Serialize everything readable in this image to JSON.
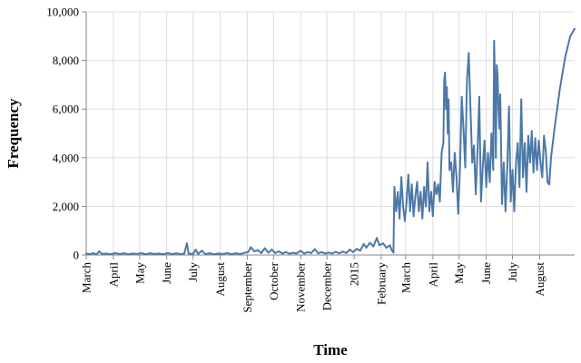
{
  "chart_data": {
    "type": "line",
    "title": "",
    "xlabel": "Time",
    "ylabel": "Frequency",
    "ylim": [
      0,
      10000
    ],
    "y_ticks": [
      {
        "value": 0,
        "label": "0"
      },
      {
        "value": 2000,
        "label": "2,000"
      },
      {
        "value": 4000,
        "label": "4,000"
      },
      {
        "value": 6000,
        "label": "6,000"
      },
      {
        "value": 8000,
        "label": "8,000"
      },
      {
        "value": 10000,
        "label": "10,000"
      }
    ],
    "x_domain": [
      "2014-03-01",
      "2015-09-10"
    ],
    "x_ticks": [
      {
        "date": "2014-03-01",
        "label": "March"
      },
      {
        "date": "2014-04-01",
        "label": "April"
      },
      {
        "date": "2014-05-01",
        "label": "May"
      },
      {
        "date": "2014-06-01",
        "label": "June"
      },
      {
        "date": "2014-07-01",
        "label": "July"
      },
      {
        "date": "2014-08-01",
        "label": "August"
      },
      {
        "date": "2014-09-01",
        "label": "September"
      },
      {
        "date": "2014-10-01",
        "label": "October"
      },
      {
        "date": "2014-11-01",
        "label": "November"
      },
      {
        "date": "2014-12-01",
        "label": "December"
      },
      {
        "date": "2015-01-01",
        "label": "2015"
      },
      {
        "date": "2015-02-01",
        "label": "February"
      },
      {
        "date": "2015-03-01",
        "label": "March"
      },
      {
        "date": "2015-04-01",
        "label": "April"
      },
      {
        "date": "2015-05-01",
        "label": "May"
      },
      {
        "date": "2015-06-01",
        "label": "June"
      },
      {
        "date": "2015-07-01",
        "label": "July"
      },
      {
        "date": "2015-08-01",
        "label": "August"
      }
    ],
    "series": [
      {
        "name": "Frequency",
        "color": "#4c78a8",
        "points": [
          [
            "2014-03-01",
            60
          ],
          [
            "2014-03-05",
            40
          ],
          [
            "2014-03-09",
            70
          ],
          [
            "2014-03-13",
            30
          ],
          [
            "2014-03-16",
            150
          ],
          [
            "2014-03-19",
            40
          ],
          [
            "2014-03-24",
            60
          ],
          [
            "2014-03-29",
            30
          ],
          [
            "2014-04-03",
            80
          ],
          [
            "2014-04-08",
            40
          ],
          [
            "2014-04-13",
            70
          ],
          [
            "2014-04-18",
            30
          ],
          [
            "2014-04-23",
            60
          ],
          [
            "2014-04-28",
            40
          ],
          [
            "2014-05-03",
            80
          ],
          [
            "2014-05-08",
            30
          ],
          [
            "2014-05-13",
            70
          ],
          [
            "2014-05-18",
            40
          ],
          [
            "2014-05-23",
            60
          ],
          [
            "2014-05-28",
            30
          ],
          [
            "2014-06-02",
            80
          ],
          [
            "2014-06-07",
            40
          ],
          [
            "2014-06-12",
            70
          ],
          [
            "2014-06-17",
            30
          ],
          [
            "2014-06-21",
            60
          ],
          [
            "2014-06-24",
            480
          ],
          [
            "2014-06-26",
            60
          ],
          [
            "2014-07-01",
            40
          ],
          [
            "2014-07-04",
            220
          ],
          [
            "2014-07-07",
            40
          ],
          [
            "2014-07-11",
            180
          ],
          [
            "2014-07-15",
            40
          ],
          [
            "2014-07-20",
            70
          ],
          [
            "2014-07-25",
            30
          ],
          [
            "2014-07-30",
            60
          ],
          [
            "2014-08-04",
            40
          ],
          [
            "2014-08-09",
            80
          ],
          [
            "2014-08-14",
            30
          ],
          [
            "2014-08-19",
            70
          ],
          [
            "2014-08-24",
            40
          ],
          [
            "2014-08-29",
            90
          ],
          [
            "2014-09-02",
            120
          ],
          [
            "2014-09-05",
            320
          ],
          [
            "2014-09-09",
            150
          ],
          [
            "2014-09-13",
            200
          ],
          [
            "2014-09-17",
            80
          ],
          [
            "2014-09-21",
            280
          ],
          [
            "2014-09-25",
            100
          ],
          [
            "2014-09-29",
            220
          ],
          [
            "2014-10-03",
            80
          ],
          [
            "2014-10-07",
            150
          ],
          [
            "2014-10-11",
            60
          ],
          [
            "2014-10-15",
            120
          ],
          [
            "2014-10-19",
            50
          ],
          [
            "2014-10-23",
            90
          ],
          [
            "2014-10-27",
            60
          ],
          [
            "2014-11-01",
            170
          ],
          [
            "2014-11-05",
            60
          ],
          [
            "2014-11-09",
            120
          ],
          [
            "2014-11-13",
            80
          ],
          [
            "2014-11-17",
            240
          ],
          [
            "2014-11-21",
            70
          ],
          [
            "2014-11-25",
            120
          ],
          [
            "2014-11-29",
            60
          ],
          [
            "2014-12-03",
            100
          ],
          [
            "2014-12-07",
            60
          ],
          [
            "2014-12-11",
            130
          ],
          [
            "2014-12-15",
            70
          ],
          [
            "2014-12-19",
            140
          ],
          [
            "2014-12-23",
            80
          ],
          [
            "2014-12-27",
            220
          ],
          [
            "2014-12-31",
            120
          ],
          [
            "2015-01-04",
            250
          ],
          [
            "2015-01-08",
            180
          ],
          [
            "2015-01-12",
            450
          ],
          [
            "2015-01-15",
            300
          ],
          [
            "2015-01-19",
            500
          ],
          [
            "2015-01-23",
            350
          ],
          [
            "2015-01-27",
            700
          ],
          [
            "2015-01-30",
            400
          ],
          [
            "2015-02-03",
            480
          ],
          [
            "2015-02-07",
            300
          ],
          [
            "2015-02-11",
            400
          ],
          [
            "2015-02-13",
            200
          ],
          [
            "2015-02-15",
            100
          ],
          [
            "2015-02-16",
            2800
          ],
          [
            "2015-02-18",
            1800
          ],
          [
            "2015-02-20",
            2600
          ],
          [
            "2015-02-22",
            1500
          ],
          [
            "2015-02-24",
            3200
          ],
          [
            "2015-02-26",
            2000
          ],
          [
            "2015-02-28",
            1400
          ],
          [
            "2015-03-02",
            2200
          ],
          [
            "2015-03-04",
            3300
          ],
          [
            "2015-03-06",
            1800
          ],
          [
            "2015-03-08",
            2900
          ],
          [
            "2015-03-10",
            1600
          ],
          [
            "2015-03-12",
            2400
          ],
          [
            "2015-03-14",
            3000
          ],
          [
            "2015-03-16",
            1800
          ],
          [
            "2015-03-18",
            2600
          ],
          [
            "2015-03-20",
            1500
          ],
          [
            "2015-03-22",
            2800
          ],
          [
            "2015-03-24",
            2000
          ],
          [
            "2015-03-26",
            3800
          ],
          [
            "2015-03-28",
            1800
          ],
          [
            "2015-03-30",
            2600
          ],
          [
            "2015-04-01",
            1600
          ],
          [
            "2015-04-03",
            3000
          ],
          [
            "2015-04-05",
            2500
          ],
          [
            "2015-04-07",
            2900
          ],
          [
            "2015-04-09",
            2200
          ],
          [
            "2015-04-11",
            4200
          ],
          [
            "2015-04-13",
            4600
          ],
          [
            "2015-04-14",
            7200
          ],
          [
            "2015-04-15",
            7500
          ],
          [
            "2015-04-16",
            6000
          ],
          [
            "2015-04-17",
            6900
          ],
          [
            "2015-04-18",
            5000
          ],
          [
            "2015-04-19",
            6400
          ],
          [
            "2015-04-20",
            3500
          ],
          [
            "2015-04-22",
            3800
          ],
          [
            "2015-04-24",
            2600
          ],
          [
            "2015-04-26",
            4200
          ],
          [
            "2015-04-28",
            3200
          ],
          [
            "2015-04-30",
            1700
          ],
          [
            "2015-05-02",
            3600
          ],
          [
            "2015-05-04",
            6500
          ],
          [
            "2015-05-06",
            5200
          ],
          [
            "2015-05-08",
            3600
          ],
          [
            "2015-05-10",
            7200
          ],
          [
            "2015-05-12",
            8300
          ],
          [
            "2015-05-14",
            6000
          ],
          [
            "2015-05-16",
            3800
          ],
          [
            "2015-05-18",
            4500
          ],
          [
            "2015-05-20",
            2500
          ],
          [
            "2015-05-22",
            4200
          ],
          [
            "2015-05-24",
            6500
          ],
          [
            "2015-05-26",
            2200
          ],
          [
            "2015-05-28",
            3600
          ],
          [
            "2015-05-30",
            4700
          ],
          [
            "2015-06-01",
            2800
          ],
          [
            "2015-06-03",
            4200
          ],
          [
            "2015-06-05",
            3000
          ],
          [
            "2015-06-07",
            5000
          ],
          [
            "2015-06-09",
            3500
          ],
          [
            "2015-06-10",
            8800
          ],
          [
            "2015-06-11",
            7000
          ],
          [
            "2015-06-12",
            4000
          ],
          [
            "2015-06-13",
            7800
          ],
          [
            "2015-06-14",
            7400
          ],
          [
            "2015-06-15",
            6000
          ],
          [
            "2015-06-16",
            5200
          ],
          [
            "2015-06-17",
            6600
          ],
          [
            "2015-06-19",
            2100
          ],
          [
            "2015-06-21",
            3800
          ],
          [
            "2015-06-23",
            1800
          ],
          [
            "2015-06-25",
            3600
          ],
          [
            "2015-06-27",
            6100
          ],
          [
            "2015-06-29",
            2200
          ],
          [
            "2015-07-01",
            3500
          ],
          [
            "2015-07-03",
            1800
          ],
          [
            "2015-07-05",
            3800
          ],
          [
            "2015-07-07",
            4600
          ],
          [
            "2015-07-09",
            2800
          ],
          [
            "2015-07-11",
            6400
          ],
          [
            "2015-07-13",
            3200
          ],
          [
            "2015-07-15",
            4600
          ],
          [
            "2015-07-17",
            2600
          ],
          [
            "2015-07-19",
            4900
          ],
          [
            "2015-07-21",
            3800
          ],
          [
            "2015-07-23",
            5100
          ],
          [
            "2015-07-25",
            3400
          ],
          [
            "2015-07-27",
            4800
          ],
          [
            "2015-07-29",
            3500
          ],
          [
            "2015-07-31",
            4700
          ],
          [
            "2015-08-02",
            3800
          ],
          [
            "2015-08-04",
            3200
          ],
          [
            "2015-08-06",
            4900
          ],
          [
            "2015-08-08",
            4300
          ],
          [
            "2015-08-10",
            3000
          ],
          [
            "2015-08-12",
            2900
          ],
          [
            "2015-08-14",
            4000
          ],
          [
            "2015-08-18",
            5200
          ],
          [
            "2015-08-24",
            6800
          ],
          [
            "2015-08-30",
            8100
          ],
          [
            "2015-09-05",
            9000
          ],
          [
            "2015-09-10",
            9300
          ]
        ]
      }
    ]
  }
}
